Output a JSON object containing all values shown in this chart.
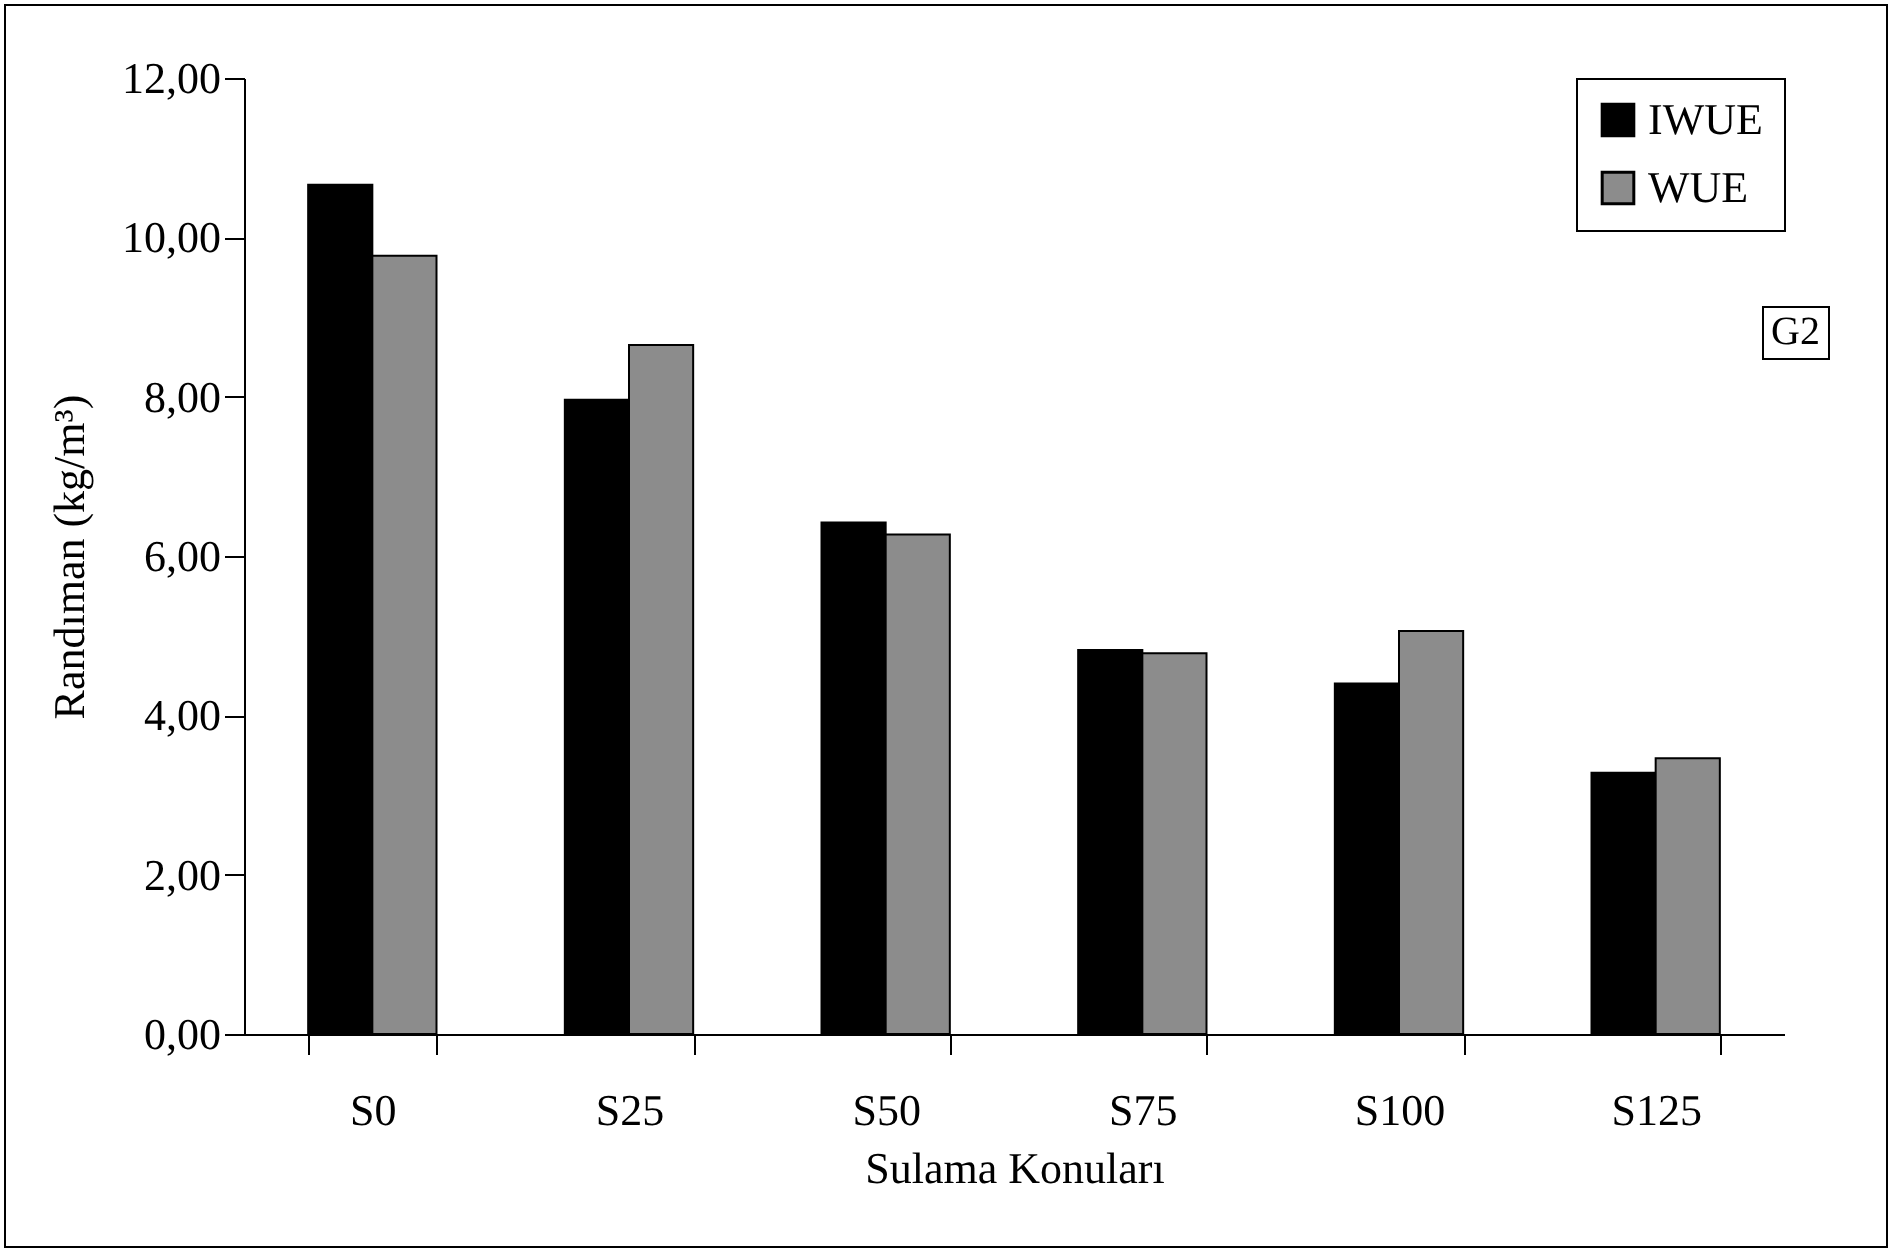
{
  "chart_data": {
    "type": "bar",
    "xlabel": "Sulama Konuları",
    "ylabel": "Randıman (kg/m³)",
    "categories": [
      "S0",
      "S25",
      "S50",
      "S75",
      "S100",
      "S125"
    ],
    "series": [
      {
        "name": "IWUE",
        "color": "#000000",
        "values": [
          10.66,
          7.96,
          6.42,
          4.82,
          4.4,
          3.28
        ]
      },
      {
        "name": "WUE",
        "color": "#8c8c8c",
        "values": [
          9.77,
          8.65,
          6.27,
          4.78,
          5.06,
          3.46
        ]
      }
    ],
    "ylim": [
      0,
      12
    ],
    "yticks": [
      {
        "value": 0,
        "label": "0,00"
      },
      {
        "value": 2,
        "label": "2,00"
      },
      {
        "value": 4,
        "label": "4,00"
      },
      {
        "value": 6,
        "label": "6,00"
      },
      {
        "value": 8,
        "label": "8,00"
      },
      {
        "value": 10,
        "label": "10,00"
      },
      {
        "value": 12,
        "label": "12,00"
      }
    ],
    "annotations": [
      "G2"
    ],
    "legend": "top right"
  }
}
